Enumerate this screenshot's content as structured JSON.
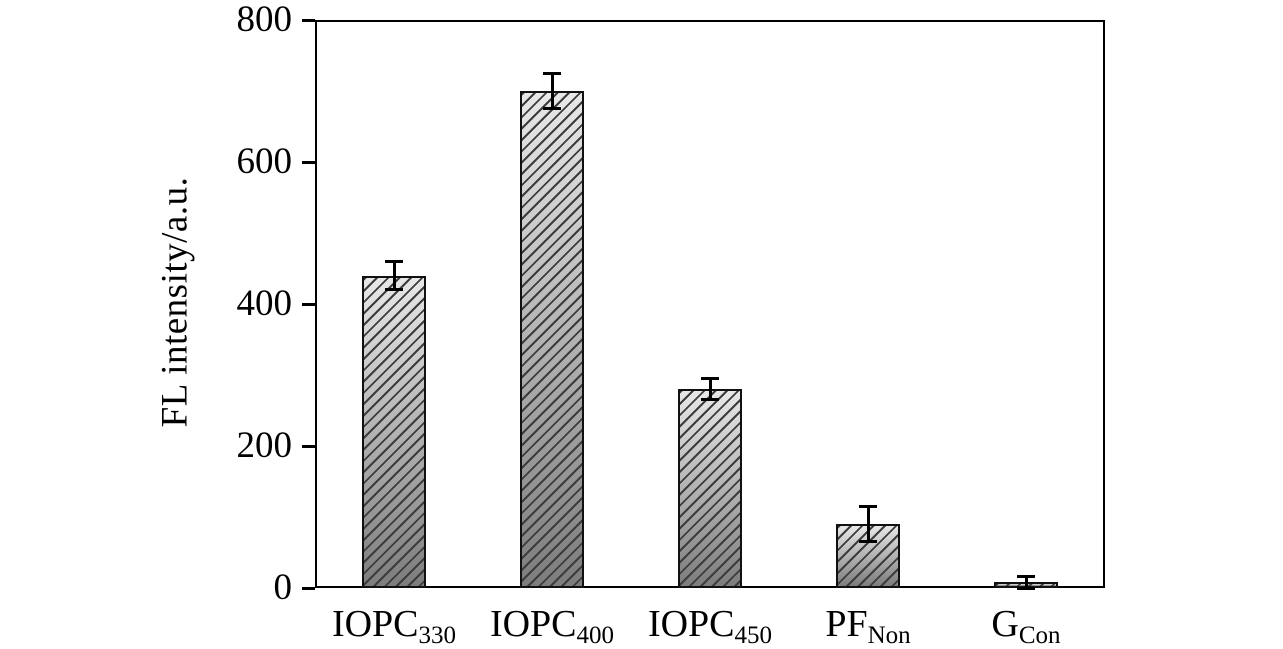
{
  "figure": {
    "background": "#ffffff"
  },
  "chart_data": {
    "type": "bar",
    "title": "",
    "xlabel": "",
    "ylabel": "FL intensity/a.u.",
    "ylim": [
      0,
      800
    ],
    "yticks": [
      0,
      200,
      400,
      600,
      800
    ],
    "grid": false,
    "legend": "none",
    "categories": [
      "IOPC330",
      "IOPC400",
      "IOPC450",
      "PFNon",
      "GCon"
    ],
    "category_labels": [
      {
        "base": "IOPC",
        "subscript": "330"
      },
      {
        "base": "IOPC",
        "subscript": "400"
      },
      {
        "base": "IOPC",
        "subscript": "450"
      },
      {
        "base": "PF",
        "subscript": "Non"
      },
      {
        "base": "G",
        "subscript": "Con"
      }
    ],
    "values": [
      440,
      700,
      280,
      90,
      8
    ],
    "errors": [
      20,
      25,
      15,
      25,
      8
    ],
    "bar_style": {
      "hatch": "diagonal-forward",
      "fill_top": "#e8e8e8",
      "fill_bottom": "#7d7d7d",
      "hatch_color": "#3c3c3c",
      "border_color": "#111111"
    },
    "axis_color": "#000000"
  }
}
